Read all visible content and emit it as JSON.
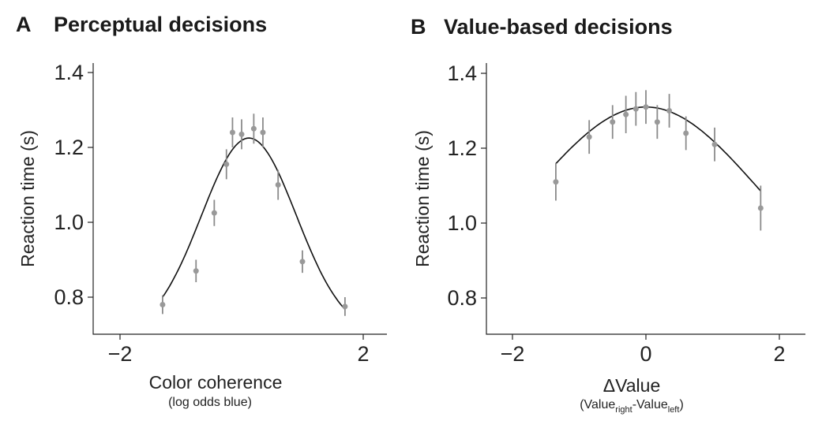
{
  "colors": {
    "points": "#999999",
    "errorbars": "#8a8a8a",
    "curve": "#111111",
    "text": "#222222"
  },
  "chart_data": [
    {
      "type": "scatter",
      "panel_letter": "A",
      "title": "Perceptual decisions",
      "xlabel": "Color coherence",
      "xlabel_sub": "(log odds blue)",
      "ylabel": "Reaction time (s)",
      "xlim": [
        -2.4,
        2.4
      ],
      "ylim": [
        0.7,
        1.42
      ],
      "xticks": [
        -2,
        2
      ],
      "xtick_labels": [
        "−2",
        "2"
      ],
      "yticks": [
        0.8,
        1.0,
        1.2,
        1.4
      ],
      "ytick_labels": [
        "0.8",
        "1.0",
        "1.2",
        "1.4"
      ],
      "grid": false,
      "points": [
        {
          "x": -1.3,
          "y": 0.78,
          "err": 0.025
        },
        {
          "x": -0.75,
          "y": 0.87,
          "err": 0.03
        },
        {
          "x": -0.45,
          "y": 1.025,
          "err": 0.035
        },
        {
          "x": -0.25,
          "y": 1.155,
          "err": 0.04
        },
        {
          "x": -0.15,
          "y": 1.24,
          "err": 0.04
        },
        {
          "x": 0.0,
          "y": 1.235,
          "err": 0.04
        },
        {
          "x": 0.2,
          "y": 1.25,
          "err": 0.04
        },
        {
          "x": 0.35,
          "y": 1.24,
          "err": 0.04
        },
        {
          "x": 0.6,
          "y": 1.1,
          "err": 0.04
        },
        {
          "x": 1.0,
          "y": 0.895,
          "err": 0.03
        },
        {
          "x": 1.7,
          "y": 0.775,
          "err": 0.025
        }
      ],
      "fit_curve": {
        "x_range": [
          -1.3,
          1.7
        ],
        "peak_x": 0.12,
        "peak_y": 1.225,
        "base_y": 0.7,
        "width": 0.78
      }
    },
    {
      "type": "scatter",
      "panel_letter": "B",
      "title": "Value-based decisions",
      "xlabel": "ΔValue",
      "xlabel_sub_parts": [
        "(Value",
        "right",
        "-Value",
        "left",
        ")"
      ],
      "ylabel": "Reaction time (s)",
      "xlim": [
        -2.4,
        2.4
      ],
      "ylim": [
        0.7,
        1.42
      ],
      "xticks": [
        -2,
        0,
        2
      ],
      "xtick_labels": [
        "−2",
        "0",
        "2"
      ],
      "yticks": [
        0.8,
        1.0,
        1.2,
        1.4
      ],
      "ytick_labels": [
        "0.8",
        "1.0",
        "1.2",
        "1.4"
      ],
      "grid": false,
      "points": [
        {
          "x": -1.35,
          "y": 1.11,
          "err": 0.05
        },
        {
          "x": -0.85,
          "y": 1.23,
          "err": 0.045
        },
        {
          "x": -0.5,
          "y": 1.27,
          "err": 0.045
        },
        {
          "x": -0.3,
          "y": 1.29,
          "err": 0.05
        },
        {
          "x": -0.15,
          "y": 1.305,
          "err": 0.045
        },
        {
          "x": 0.0,
          "y": 1.31,
          "err": 0.045
        },
        {
          "x": 0.17,
          "y": 1.27,
          "err": 0.045
        },
        {
          "x": 0.35,
          "y": 1.3,
          "err": 0.045
        },
        {
          "x": 0.6,
          "y": 1.24,
          "err": 0.045
        },
        {
          "x": 1.03,
          "y": 1.21,
          "err": 0.045
        },
        {
          "x": 1.72,
          "y": 1.04,
          "err": 0.06
        }
      ],
      "fit_curve": {
        "x_range": [
          -1.35,
          1.72
        ],
        "peak_x": 0.0,
        "peak_y": 1.31,
        "base_y": 0.75,
        "width": 1.7
      }
    }
  ]
}
